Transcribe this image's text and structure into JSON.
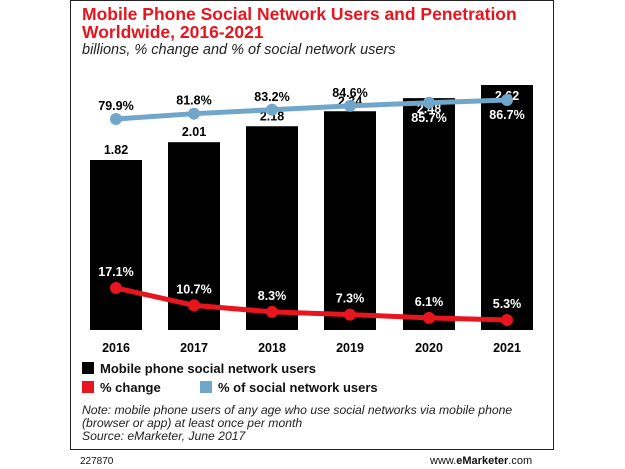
{
  "header": {
    "title": "Mobile Phone Social Network Users and Penetration Worldwide, 2016-2021",
    "subtitle": "billions, % change and % of social network users"
  },
  "legend": {
    "users": "Mobile phone social network users",
    "change": "% change",
    "share": "% of social network users"
  },
  "footer": {
    "note": "Note: mobile phone users of any age who use social networks via mobile phone (browser or app) at least once per month",
    "source": "Source: eMarketer, June 2017",
    "chart_id": "227870",
    "brand_prefix": "www.",
    "brand_name": "eMarketer",
    "brand_suffix": ".com"
  },
  "colors": {
    "bar": "#000000",
    "change_line": "#e8141e",
    "share_line": "#6fa6c9",
    "title": "#e8141e"
  },
  "chart_data": {
    "type": "bar",
    "title": "Mobile Phone Social Network Users and Penetration Worldwide, 2016-2021",
    "subtitle": "billions, % change and % of social network users",
    "categories": [
      "2016",
      "2017",
      "2018",
      "2019",
      "2020",
      "2021"
    ],
    "series": [
      {
        "name": "Mobile phone social network users",
        "type": "bar",
        "values": [
          1.82,
          2.01,
          2.18,
          2.34,
          2.48,
          2.62
        ],
        "labels": [
          "1.82",
          "2.01",
          "2.18",
          "2.34",
          "2.48",
          "2.62"
        ]
      },
      {
        "name": "% change",
        "type": "line",
        "values": [
          17.1,
          10.7,
          8.3,
          7.3,
          6.1,
          5.3
        ],
        "labels": [
          "17.1%",
          "10.7%",
          "8.3%",
          "7.3%",
          "6.1%",
          "5.3%"
        ]
      },
      {
        "name": "% of social network users",
        "type": "line",
        "values": [
          79.9,
          81.8,
          83.2,
          84.6,
          85.7,
          86.7
        ],
        "labels": [
          "79.9%",
          "81.8%",
          "83.2%",
          "84.6%",
          "85.7%",
          "86.7%"
        ]
      }
    ],
    "legend_position": "bottom",
    "grid": false
  }
}
